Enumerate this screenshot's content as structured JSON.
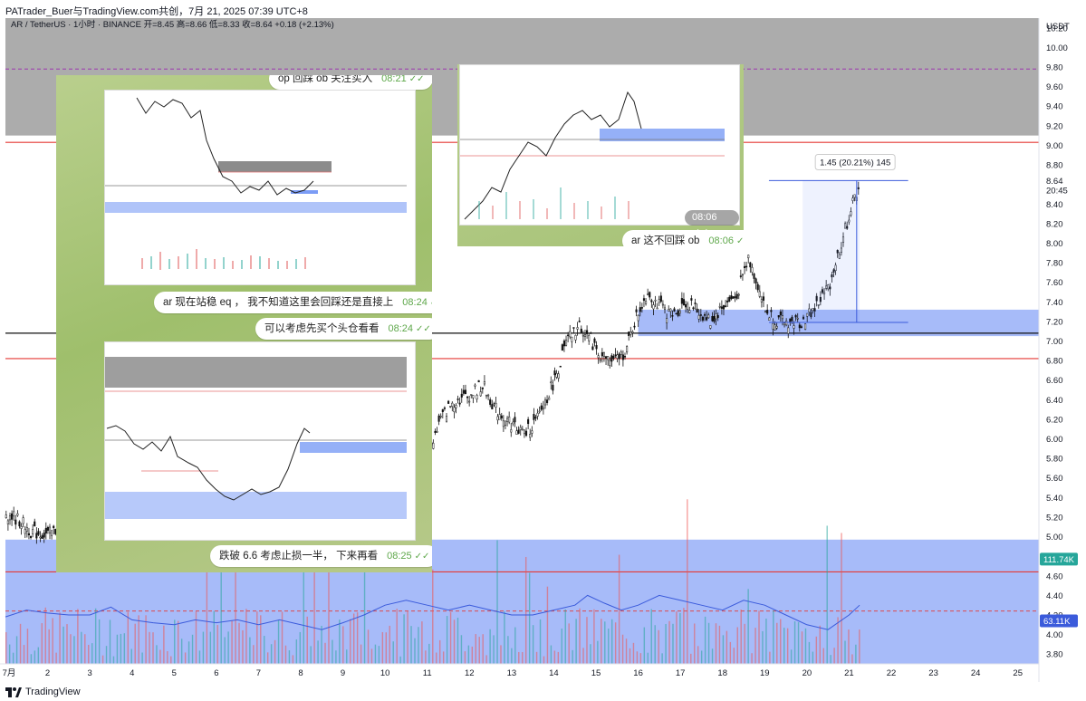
{
  "header": {
    "title": "PATrader_Buer与TradingView.com共创，7月 21, 2025 07:39 UTC+8"
  },
  "footer": {
    "brand": "TradingView"
  },
  "colors": {
    "up_candle": "#26a69a",
    "down_candle": "#ef5350",
    "candle": "#111111",
    "blue_zone": "#6d8ef5",
    "gray_zone": "#9e9e9e",
    "red_line": "#e53935",
    "volume_ma": "#3b5bdb",
    "price_badge": "#26a69a",
    "ma_badge": "#3b5bdb"
  },
  "chart_data": {
    "type": "line",
    "legend_text": "AR / TetherUS · 1小时 · BINANCE  开=8.45  高=8.66  低=8.33  收=8.64  +0.18 (+2.13%)",
    "y_axis_unit": "USDT",
    "y_ticks": [
      "10.20",
      "10.00",
      "9.80",
      "9.60",
      "9.40",
      "9.20",
      "9.00",
      "8.80",
      "8.64",
      "8.40",
      "8.20",
      "8.00",
      "7.80",
      "7.60",
      "7.40",
      "7.20",
      "7.00",
      "6.80",
      "6.60",
      "6.40",
      "6.20",
      "6.00",
      "5.80",
      "5.60",
      "5.40",
      "5.20",
      "5.00",
      "4.80",
      "4.60",
      "4.40",
      "4.20",
      "4.00",
      "3.80"
    ],
    "y_range": [
      3.7,
      10.3
    ],
    "x_ticks": [
      "7月",
      "2",
      "3",
      "4",
      "5",
      "6",
      "7",
      "8",
      "9",
      "10",
      "11",
      "12",
      "13",
      "14",
      "15",
      "16",
      "17",
      "18",
      "19",
      "20",
      "21",
      "22",
      "23",
      "24",
      "25"
    ],
    "x_range_days": [
      1,
      25.5
    ],
    "current_price": {
      "value": "8.64",
      "time_left": "20:45"
    },
    "measure_label": "1.45 (20.21%) 145",
    "volume_badge": "111.74K",
    "volume_ma_badge": "63.11K",
    "price_path": [
      [
        1.0,
        5.24
      ],
      [
        1.3,
        5.17
      ],
      [
        1.6,
        5.05
      ],
      [
        2.0,
        5.02
      ],
      [
        2.3,
        5.1
      ],
      [
        2.6,
        5.18
      ],
      [
        3.0,
        5.25
      ],
      [
        3.3,
        5.35
      ],
      [
        3.6,
        5.42
      ],
      [
        3.9,
        5.3
      ],
      [
        4.2,
        5.18
      ],
      [
        4.6,
        5.1
      ],
      [
        5.0,
        5.0
      ],
      [
        5.3,
        5.05
      ],
      [
        5.6,
        5.12
      ],
      [
        6.0,
        5.05
      ],
      [
        6.4,
        5.15
      ],
      [
        6.8,
        5.2
      ],
      [
        7.2,
        5.1
      ],
      [
        7.6,
        5.08
      ],
      [
        8.0,
        5.0
      ],
      [
        8.4,
        4.98
      ],
      [
        8.8,
        5.1
      ],
      [
        9.2,
        5.18
      ],
      [
        9.6,
        5.25
      ],
      [
        10.0,
        5.35
      ],
      [
        10.3,
        5.6
      ],
      [
        10.6,
        5.72
      ],
      [
        11.0,
        5.85
      ],
      [
        11.3,
        6.2
      ],
      [
        11.6,
        6.38
      ],
      [
        12.0,
        6.45
      ],
      [
        12.3,
        6.55
      ],
      [
        12.6,
        6.3
      ],
      [
        13.0,
        6.15
      ],
      [
        13.3,
        6.05
      ],
      [
        13.6,
        6.2
      ],
      [
        14.0,
        6.6
      ],
      [
        14.3,
        7.0
      ],
      [
        14.6,
        7.15
      ],
      [
        14.8,
        7.05
      ],
      [
        15.1,
        6.85
      ],
      [
        15.4,
        6.78
      ],
      [
        15.7,
        6.9
      ],
      [
        15.9,
        7.2
      ],
      [
        16.2,
        7.5
      ],
      [
        16.5,
        7.35
      ],
      [
        16.8,
        7.25
      ],
      [
        17.1,
        7.4
      ],
      [
        17.4,
        7.3
      ],
      [
        17.7,
        7.2
      ],
      [
        18.0,
        7.35
      ],
      [
        18.3,
        7.45
      ],
      [
        18.6,
        7.85
      ],
      [
        18.8,
        7.6
      ],
      [
        19.0,
        7.3
      ],
      [
        19.3,
        7.2
      ],
      [
        19.6,
        7.18
      ],
      [
        19.9,
        7.2
      ],
      [
        20.2,
        7.35
      ],
      [
        20.5,
        7.55
      ],
      [
        20.8,
        8.0
      ],
      [
        21.0,
        8.3
      ],
      [
        21.25,
        8.64
      ]
    ],
    "volume_ma_path": [
      [
        1.0,
        4.18
      ],
      [
        1.5,
        4.25
      ],
      [
        2.0,
        4.22
      ],
      [
        2.5,
        4.2
      ],
      [
        3.0,
        4.2
      ],
      [
        3.5,
        4.28
      ],
      [
        4.0,
        4.15
      ],
      [
        4.5,
        4.12
      ],
      [
        5.0,
        4.1
      ],
      [
        5.5,
        4.15
      ],
      [
        6.0,
        4.12
      ],
      [
        6.5,
        4.15
      ],
      [
        7.0,
        4.1
      ],
      [
        7.5,
        4.15
      ],
      [
        8.0,
        4.1
      ],
      [
        8.5,
        4.05
      ],
      [
        9.0,
        4.12
      ],
      [
        9.5,
        4.2
      ],
      [
        10.0,
        4.3
      ],
      [
        10.5,
        4.35
      ],
      [
        11.0,
        4.3
      ],
      [
        11.5,
        4.25
      ],
      [
        12.0,
        4.3
      ],
      [
        12.5,
        4.25
      ],
      [
        13.0,
        4.2
      ],
      [
        13.5,
        4.2
      ],
      [
        14.0,
        4.25
      ],
      [
        14.5,
        4.3
      ],
      [
        14.8,
        4.4
      ],
      [
        15.2,
        4.32
      ],
      [
        15.6,
        4.25
      ],
      [
        16.0,
        4.3
      ],
      [
        16.5,
        4.4
      ],
      [
        17.0,
        4.35
      ],
      [
        17.5,
        4.3
      ],
      [
        18.0,
        4.25
      ],
      [
        18.5,
        4.35
      ],
      [
        19.0,
        4.3
      ],
      [
        19.5,
        4.2
      ],
      [
        20.0,
        4.1
      ],
      [
        20.5,
        4.05
      ],
      [
        21.0,
        4.2
      ],
      [
        21.25,
        4.3
      ]
    ],
    "zones": [
      {
        "kind": "resistance",
        "from": 9.1,
        "to": 10.3,
        "x_from": 1.0,
        "x_to": 25.5
      },
      {
        "kind": "order-block",
        "from": 7.05,
        "to": 7.32,
        "x_from": 16.0,
        "x_to": 25.5
      },
      {
        "kind": "support",
        "from": 3.7,
        "to": 4.97,
        "x_from": 1.0,
        "x_to": 25.5
      }
    ],
    "levels": [
      {
        "value": 9.03,
        "style": "red"
      },
      {
        "value": 7.08,
        "style": "black"
      },
      {
        "value": 6.82,
        "style": "red"
      },
      {
        "value": 4.64,
        "style": "red"
      },
      {
        "value": 9.78,
        "style": "purple-dashed"
      },
      {
        "value": 4.24,
        "style": "red-dashed"
      }
    ]
  },
  "chat_left": {
    "msg_top": {
      "text": "op 回踩 ob 关注买入",
      "time": "08:21"
    },
    "msg_1": {
      "text": "ar 现在站稳 eq ， 我不知道这里会回踩还是直接上",
      "time": "08:24"
    },
    "msg_2": {
      "text": "可以考虑先买个头仓看看",
      "time": "08:24"
    },
    "msg_3": {
      "text": "跌破 6.6 考虑止损一半，  下来再看",
      "time": "08:25"
    }
  },
  "chat_right": {
    "shot_time": "08:06",
    "msg": {
      "text": "ar 这不回踩 ob",
      "time": "08:06"
    }
  }
}
